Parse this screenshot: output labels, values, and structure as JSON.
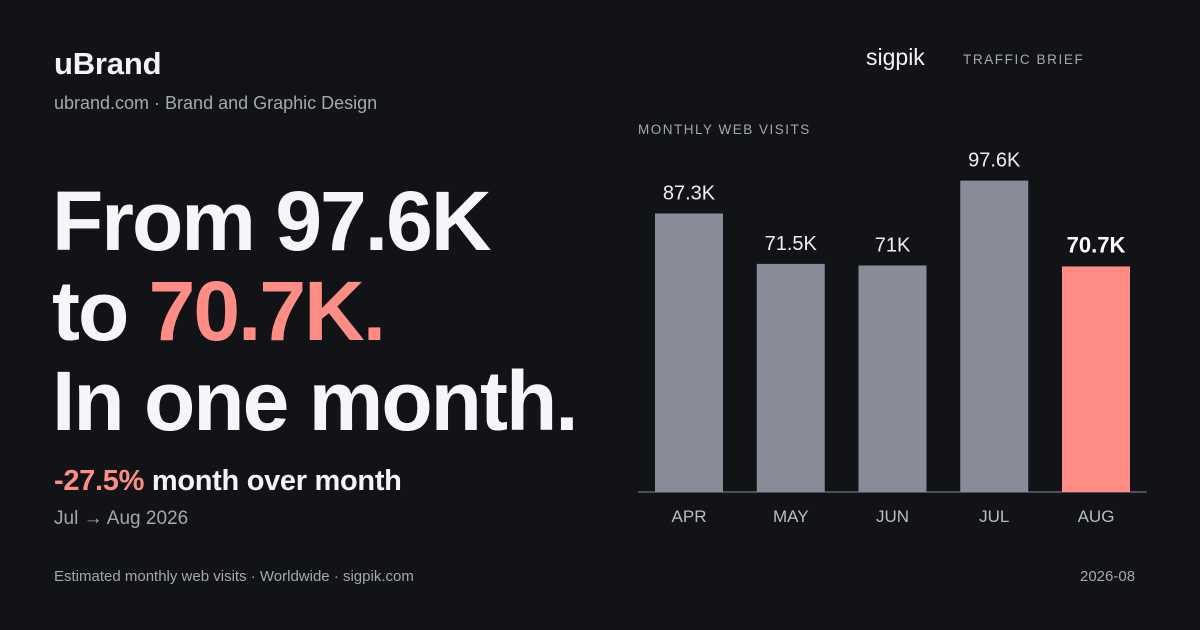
{
  "brand": {
    "name": "uBrand",
    "subtitle": "ubrand.com · Brand and Graphic Design"
  },
  "headline": {
    "line1": "From 97.6K",
    "line2_prefix": "to ",
    "line2_accent": "70.7K.",
    "line3": "In one month."
  },
  "change": {
    "value": "-27.5%",
    "text": " month over month",
    "period": "Jul → Aug 2026"
  },
  "footer": {
    "source": "Estimated monthly web visits · Worldwide · sigpik.com",
    "date": "2026-08"
  },
  "header_right": {
    "logo": "sigpik",
    "tag": "TRAFFIC BRIEF"
  },
  "colors": {
    "background": "#121317",
    "bar": "#888c98",
    "highlight": "#ff8d86"
  },
  "chart_data": {
    "type": "bar",
    "title": "MONTHLY WEB VISITS",
    "categories": [
      "APR",
      "MAY",
      "JUN",
      "JUL",
      "AUG"
    ],
    "values": [
      87.3,
      71.5,
      71.0,
      97.6,
      70.7
    ],
    "value_labels": [
      "87.3K",
      "71.5K",
      "71K",
      "97.6K",
      "70.7K"
    ],
    "unit": "K visits",
    "highlight_index": 4,
    "ylim": [
      0,
      105
    ],
    "grid": false,
    "legend": "none"
  }
}
